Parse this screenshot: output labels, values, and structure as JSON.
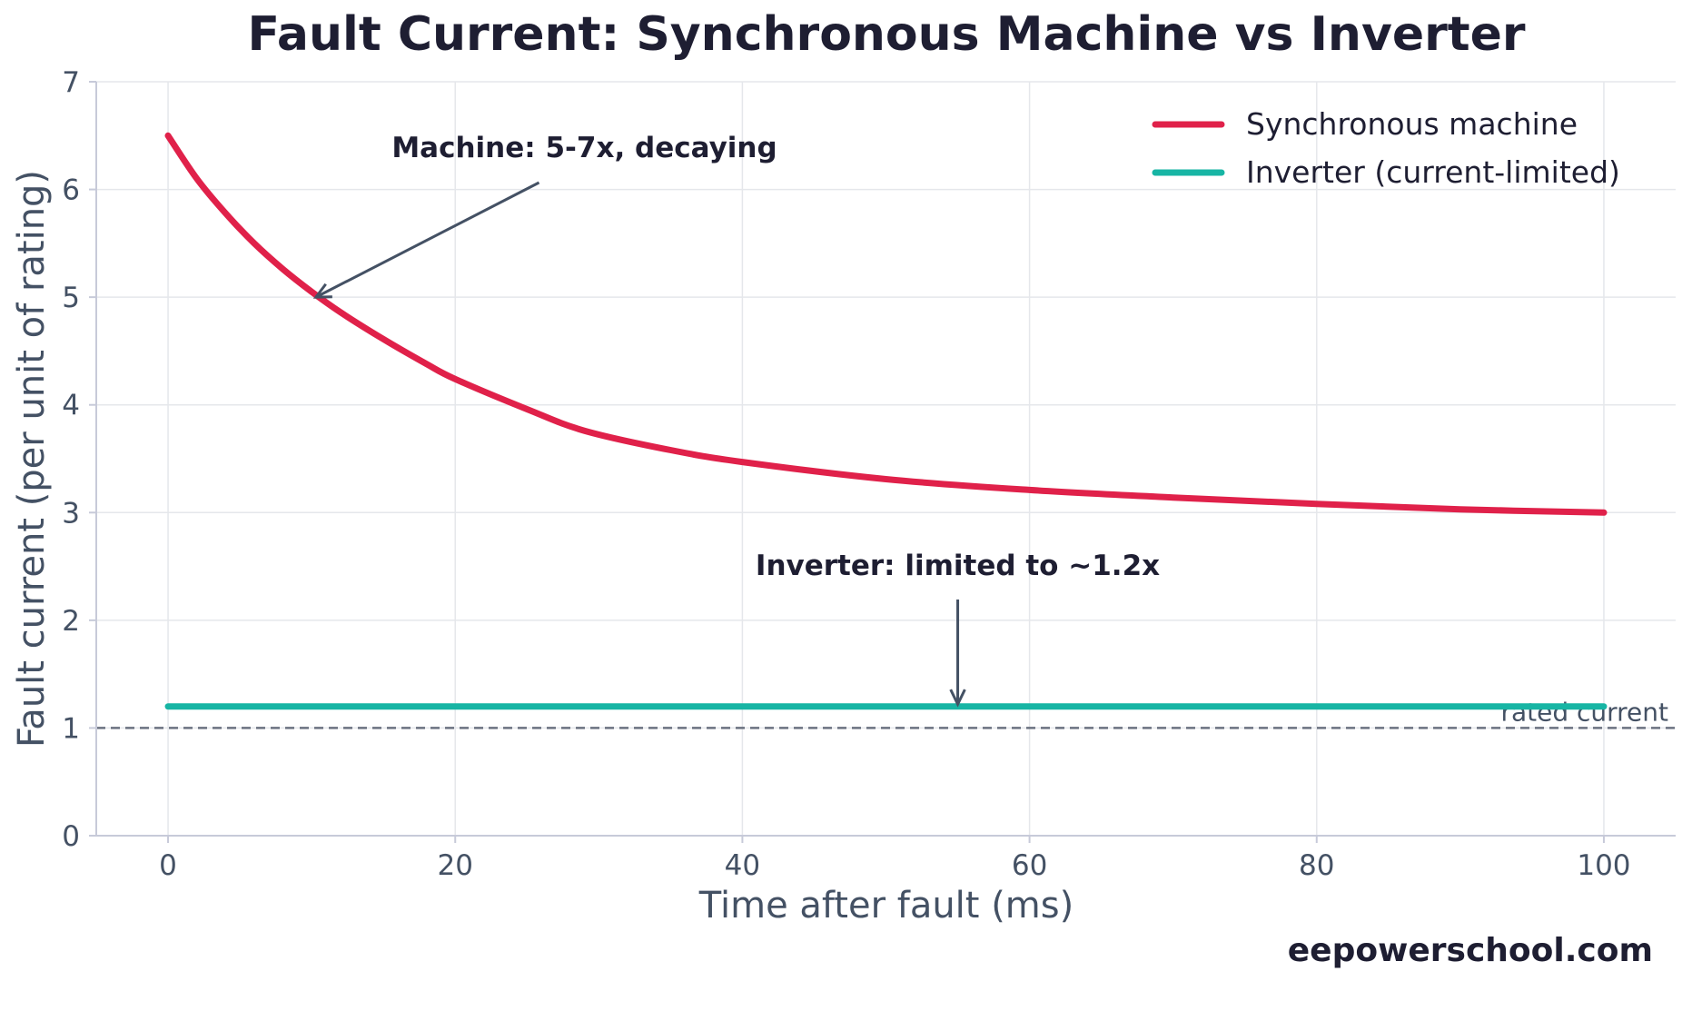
{
  "chart_data": {
    "type": "line",
    "title": "Fault Current: Synchronous Machine vs Inverter",
    "xlabel": "Time after fault (ms)",
    "ylabel": "Fault current (per unit of rating)",
    "xlim": [
      -5,
      105
    ],
    "ylim": [
      0,
      7
    ],
    "xticks": [
      0,
      20,
      40,
      60,
      80,
      100
    ],
    "yticks": [
      0,
      1,
      2,
      3,
      4,
      5,
      6,
      7
    ],
    "grid": true,
    "legend_position": "top-right",
    "series": [
      {
        "name": "Synchronous machine",
        "color": "#e0214a",
        "x": [
          0,
          2,
          4,
          6,
          8,
          10,
          12,
          15,
          18,
          20,
          25,
          29,
          35,
          40,
          50,
          60,
          70,
          80,
          90,
          100
        ],
        "y": [
          6.5,
          6.1,
          5.78,
          5.5,
          5.26,
          5.05,
          4.86,
          4.61,
          4.38,
          4.24,
          3.96,
          3.76,
          3.58,
          3.47,
          3.31,
          3.21,
          3.14,
          3.08,
          3.03,
          3.0
        ]
      },
      {
        "name": "Inverter (current-limited)",
        "color": "#17b5a4",
        "x": [
          0,
          100
        ],
        "y": [
          1.2,
          1.2
        ]
      }
    ],
    "reference_line": {
      "y": 1.0,
      "label": "rated current",
      "style": "dashed",
      "color": "#6b7280"
    },
    "annotations": [
      {
        "text": "Machine: 5-7x, decaying",
        "point": [
          10.3,
          5.0
        ],
        "text_at": [
          29,
          6.3
        ]
      },
      {
        "text": "Inverter: limited to ~1.2x",
        "point": [
          55,
          1.22
        ],
        "text_at": [
          55,
          2.42
        ]
      }
    ]
  },
  "watermark": "eepowerschool.com"
}
